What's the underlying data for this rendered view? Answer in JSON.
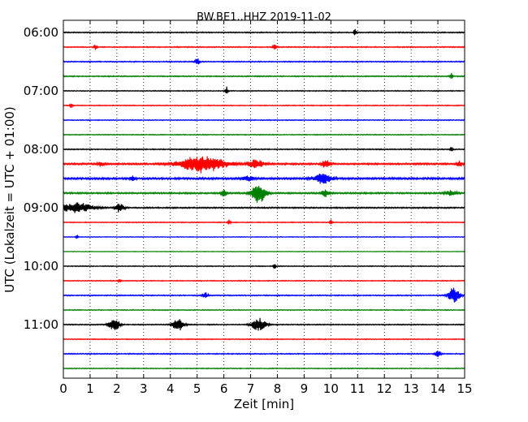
{
  "chart_data": {
    "type": "line",
    "title": "BW.BE1..HHZ 2019-11-02",
    "xlabel": "Zeit  [min]",
    "ylabel": "UTC (Lokalzeit = UTC + 01:00)",
    "xlim": [
      0,
      15
    ],
    "x_ticks": [
      0,
      1,
      2,
      3,
      4,
      5,
      6,
      7,
      8,
      9,
      10,
      11,
      12,
      13,
      14,
      15
    ],
    "grid": "vertical dotted",
    "row_interval_min": 15,
    "y_ticks": [
      {
        "row": 0,
        "label": "06:00"
      },
      {
        "row": 4,
        "label": "07:00"
      },
      {
        "row": 8,
        "label": "08:00"
      },
      {
        "row": 12,
        "label": "09:00"
      },
      {
        "row": 16,
        "label": "10:00"
      },
      {
        "row": 20,
        "label": "11:00"
      }
    ],
    "colors": [
      "#000000",
      "#ff0000",
      "#0000ff",
      "#008000"
    ],
    "rows": [
      {
        "start": "06:00",
        "color": "#000000",
        "noise": 1.2,
        "events": [
          {
            "t": 10.9,
            "amp": 4,
            "dur": 0.05
          }
        ]
      },
      {
        "start": "06:15",
        "color": "#ff0000",
        "noise": 1.2,
        "events": [
          {
            "t": 1.2,
            "amp": 4,
            "dur": 0.05
          },
          {
            "t": 7.9,
            "amp": 5,
            "dur": 0.06
          }
        ]
      },
      {
        "start": "06:30",
        "color": "#0000ff",
        "noise": 1.2,
        "events": [
          {
            "t": 5.0,
            "amp": 5,
            "dur": 0.08
          }
        ]
      },
      {
        "start": "06:45",
        "color": "#008000",
        "noise": 1.2,
        "events": [
          {
            "t": 14.5,
            "amp": 4,
            "dur": 0.05
          }
        ]
      },
      {
        "start": "07:00",
        "color": "#000000",
        "noise": 1.0,
        "events": [
          {
            "t": 6.1,
            "amp": 5,
            "dur": 0.05
          }
        ]
      },
      {
        "start": "07:15",
        "color": "#ff0000",
        "noise": 1.0,
        "events": [
          {
            "t": 0.3,
            "amp": 3,
            "dur": 0.05
          }
        ]
      },
      {
        "start": "07:30",
        "color": "#0000ff",
        "noise": 1.0,
        "events": []
      },
      {
        "start": "07:45",
        "color": "#008000",
        "noise": 1.0,
        "events": []
      },
      {
        "start": "08:00",
        "color": "#000000",
        "noise": 1.2,
        "events": [
          {
            "t": 14.5,
            "amp": 4,
            "dur": 0.05
          }
        ]
      },
      {
        "start": "08:15",
        "color": "#ff0000",
        "noise": 2.0,
        "events": [
          {
            "t": 5.2,
            "amp": 11,
            "dur": 0.8
          },
          {
            "t": 7.2,
            "amp": 5,
            "dur": 0.3
          },
          {
            "t": 9.8,
            "amp": 5,
            "dur": 0.15
          },
          {
            "t": 1.4,
            "amp": 3,
            "dur": 0.1
          },
          {
            "t": 14.8,
            "amp": 4,
            "dur": 0.1
          }
        ]
      },
      {
        "start": "08:30",
        "color": "#0000ff",
        "noise": 2.2,
        "events": [
          {
            "t": 9.7,
            "amp": 6,
            "dur": 0.3
          },
          {
            "t": 6.9,
            "amp": 3,
            "dur": 0.2
          },
          {
            "t": 2.6,
            "amp": 3,
            "dur": 0.1
          }
        ]
      },
      {
        "start": "08:45",
        "color": "#008000",
        "noise": 1.8,
        "events": [
          {
            "t": 7.3,
            "amp": 12,
            "dur": 0.25
          },
          {
            "t": 9.8,
            "amp": 4,
            "dur": 0.15
          },
          {
            "t": 6.0,
            "amp": 4,
            "dur": 0.1
          },
          {
            "t": 14.5,
            "amp": 3,
            "dur": 0.2
          }
        ]
      },
      {
        "start": "09:00",
        "color": "#000000",
        "noise": 1.5,
        "events": [
          {
            "t": 0.5,
            "amp": 6,
            "dur": 0.6
          },
          {
            "t": 2.1,
            "amp": 6,
            "dur": 0.15
          }
        ]
      },
      {
        "start": "09:15",
        "color": "#ff0000",
        "noise": 1.0,
        "events": [
          {
            "t": 6.2,
            "amp": 3,
            "dur": 0.05
          },
          {
            "t": 10.0,
            "amp": 3,
            "dur": 0.05
          }
        ]
      },
      {
        "start": "09:30",
        "color": "#0000ff",
        "noise": 0.8,
        "events": [
          {
            "t": 0.5,
            "amp": 2,
            "dur": 0.05
          }
        ]
      },
      {
        "start": "09:45",
        "color": "#008000",
        "noise": 0.6,
        "events": []
      },
      {
        "start": "10:00",
        "color": "#000000",
        "noise": 1.0,
        "events": [
          {
            "t": 7.9,
            "amp": 3,
            "dur": 0.05
          }
        ]
      },
      {
        "start": "10:15",
        "color": "#ff0000",
        "noise": 1.0,
        "events": [
          {
            "t": 2.1,
            "amp": 2,
            "dur": 0.05
          }
        ]
      },
      {
        "start": "10:30",
        "color": "#0000ff",
        "noise": 1.2,
        "events": [
          {
            "t": 14.6,
            "amp": 10,
            "dur": 0.2
          },
          {
            "t": 5.3,
            "amp": 4,
            "dur": 0.1
          }
        ]
      },
      {
        "start": "10:45",
        "color": "#008000",
        "noise": 1.0,
        "events": []
      },
      {
        "start": "11:00",
        "color": "#000000",
        "noise": 1.2,
        "events": [
          {
            "t": 1.9,
            "amp": 8,
            "dur": 0.2
          },
          {
            "t": 4.3,
            "amp": 8,
            "dur": 0.2
          },
          {
            "t": 7.3,
            "amp": 8,
            "dur": 0.25
          }
        ]
      },
      {
        "start": "11:15",
        "color": "#ff0000",
        "noise": 1.0,
        "events": []
      },
      {
        "start": "11:30",
        "color": "#0000ff",
        "noise": 1.2,
        "events": [
          {
            "t": 14.0,
            "amp": 5,
            "dur": 0.1
          }
        ]
      },
      {
        "start": "11:45",
        "color": "#008000",
        "noise": 1.0,
        "events": []
      }
    ]
  }
}
